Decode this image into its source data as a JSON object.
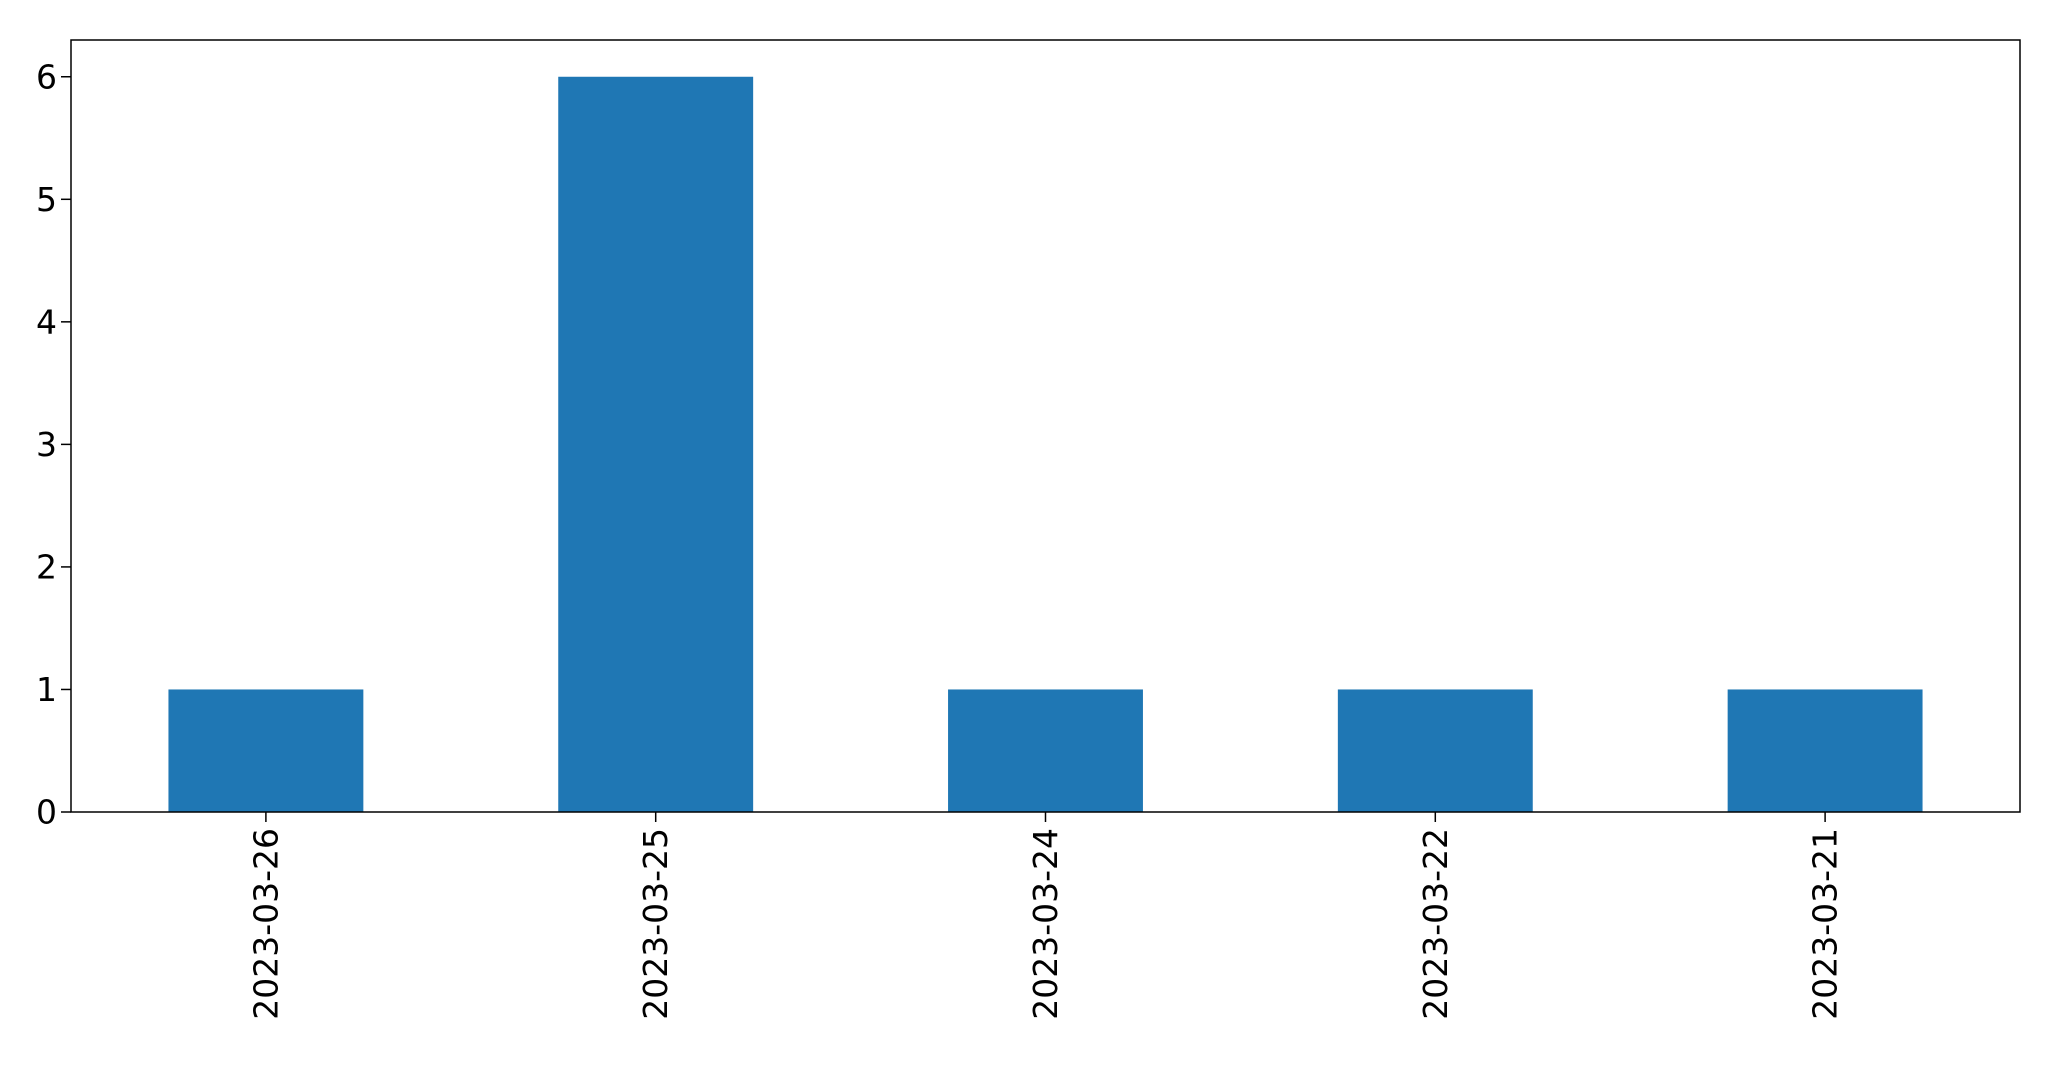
{
  "chart_data": {
    "type": "bar",
    "title": "",
    "xlabel": "",
    "ylabel": "",
    "categories": [
      "2023-03-26",
      "2023-03-25",
      "2023-03-24",
      "2023-03-22",
      "2023-03-21"
    ],
    "values": [
      1,
      6,
      1,
      1,
      1
    ],
    "ylim": [
      0,
      6.3
    ],
    "yticks": [
      0,
      1,
      2,
      3,
      4,
      5,
      6
    ],
    "grid": false,
    "legend": "none",
    "bar_color": "#1f77b4"
  }
}
